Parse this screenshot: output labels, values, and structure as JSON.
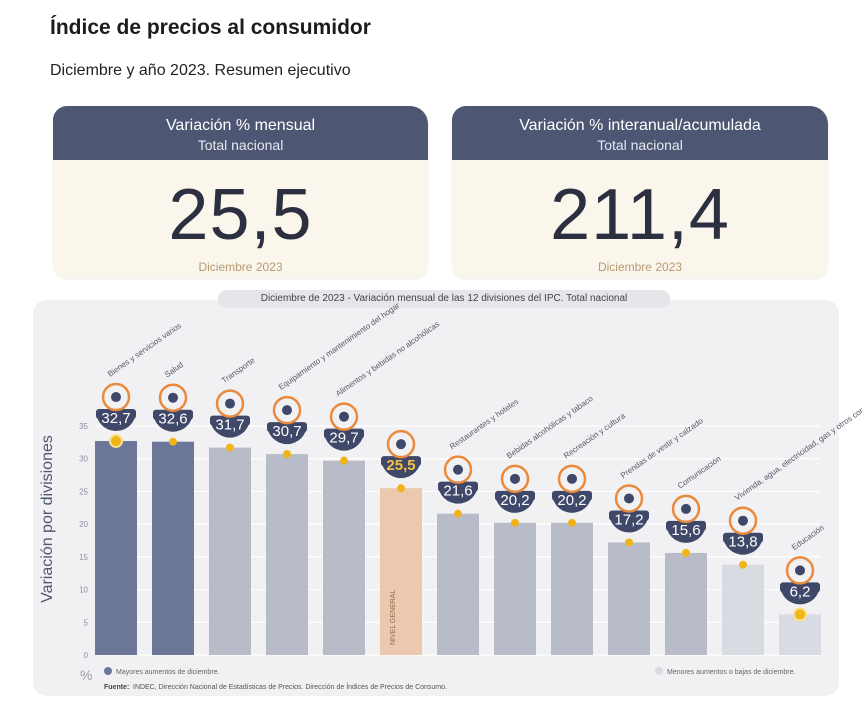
{
  "header": {
    "title": "Índice de precios al consumidor",
    "subtitle": "Diciembre y año 2023. Resumen ejecutivo"
  },
  "cards": [
    {
      "heading": "Variación % mensual",
      "subheading": "Total nacional",
      "value": "25,5",
      "period": "Diciembre 2023"
    },
    {
      "heading": "Variación % interanual/acumulada",
      "subheading": "Total nacional",
      "value": "211,4",
      "period": "Diciembre 2023"
    }
  ],
  "chart_banner": {
    "period": "Diciembre de 2023",
    "text": " - Variación mensual de las 12 divisiones del IPC. Total nacional"
  },
  "chart_data": {
    "type": "bar",
    "ylabel": "Variación por divisiones",
    "unit": "%",
    "ylim": [
      0,
      35
    ],
    "yticks": [
      0,
      5,
      10,
      15,
      20,
      25,
      30,
      35
    ],
    "grid": true,
    "categories": [
      "Bienes y servicios varios",
      "Salud",
      "Transporte",
      "Equipamiento y mantenimiento del hogar",
      "Alimentos y bebidas no alcohólicas",
      "NIVEL GENERAL",
      "Restaurantes y hoteles",
      "Bebidas alcohólicas y tabaco",
      "Recreación y cultura",
      "Prendas de vestir y calzado",
      "Comunicación",
      "Vivienda, agua, electricidad, gas y otros combustibles",
      "Educación"
    ],
    "values": [
      32.7,
      32.6,
      31.7,
      30.7,
      29.7,
      25.5,
      21.6,
      20.2,
      20.2,
      17.2,
      15.6,
      13.8,
      6.2
    ],
    "labels": [
      "32,7",
      "32,6",
      "31,7",
      "30,7",
      "29,7",
      "25,5",
      "21,6",
      "20,2",
      "20,2",
      "17,2",
      "15,6",
      "13,8",
      "6,2"
    ],
    "groups": [
      "max",
      "max",
      "mid",
      "mid",
      "mid",
      "general",
      "mid",
      "mid",
      "mid",
      "mid",
      "mid",
      "min",
      "min"
    ],
    "colors": {
      "max": "#6b7699",
      "mid": "#b8bcc9",
      "general": "#ebc8ae",
      "min": "#d9dbe2",
      "badge": "#3f4868",
      "icon": "#e98a3c",
      "dot": "#f0b418"
    },
    "legend": [
      {
        "group": "max",
        "label": "Mayores aumentos de diciembre."
      },
      {
        "group": "min",
        "label": "Menores aumentos o bajas de diciembre."
      }
    ],
    "source_label": "Fuente:",
    "source": "INDEC, Dirección Nacional de Estadísticas de Precios. Dirección de Índices de Precios de Consumo."
  }
}
